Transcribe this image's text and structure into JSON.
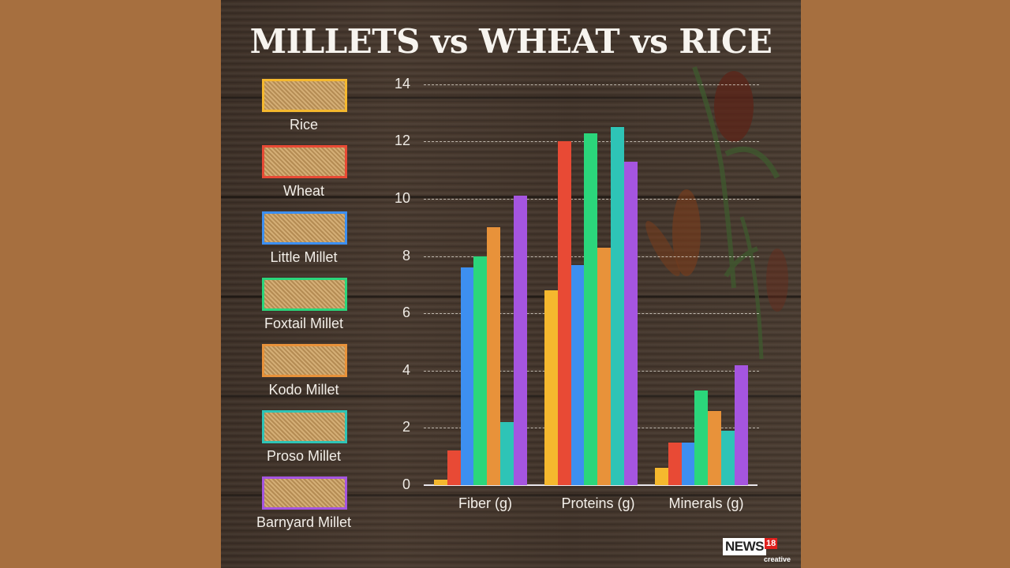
{
  "title": "MILLETS vs WHEAT vs RICE",
  "legend": [
    {
      "label": "Rice",
      "color": "#f5b82e"
    },
    {
      "label": "Wheat",
      "color": "#e84a35"
    },
    {
      "label": "Little Millet",
      "color": "#3d8ff0"
    },
    {
      "label": "Foxtail Millet",
      "color": "#2bd67b"
    },
    {
      "label": "Kodo Millet",
      "color": "#e8923a"
    },
    {
      "label": "Proso Millet",
      "color": "#2ec4b6"
    },
    {
      "label": "Barnyard Millet",
      "color": "#a555e0"
    }
  ],
  "logo": {
    "brand": "NEWS",
    "number": "18",
    "sub": "creative"
  },
  "chart_data": {
    "type": "bar",
    "title": "MILLETS vs WHEAT vs RICE",
    "categories": [
      "Fiber (g)",
      "Proteins (g)",
      "Minerals (g)"
    ],
    "series": [
      {
        "name": "Rice",
        "color": "#f5b82e",
        "values": [
          0.2,
          6.8,
          0.6
        ]
      },
      {
        "name": "Wheat",
        "color": "#e84a35",
        "values": [
          1.2,
          12.0,
          1.5
        ]
      },
      {
        "name": "Little Millet",
        "color": "#3d8ff0",
        "values": [
          7.6,
          7.7,
          1.5
        ]
      },
      {
        "name": "Foxtail Millet",
        "color": "#2bd67b",
        "values": [
          8.0,
          12.3,
          3.3
        ]
      },
      {
        "name": "Kodo Millet",
        "color": "#e8923a",
        "values": [
          9.0,
          8.3,
          2.6
        ]
      },
      {
        "name": "Proso Millet",
        "color": "#2ec4b6",
        "values": [
          2.2,
          12.5,
          1.9
        ]
      },
      {
        "name": "Barnyard Millet",
        "color": "#a555e0",
        "values": [
          10.1,
          11.3,
          4.2
        ]
      }
    ],
    "yticks": [
      0,
      2,
      4,
      6,
      8,
      10,
      12,
      14
    ],
    "ylim": [
      0,
      14
    ],
    "xlabel": "",
    "ylabel": "",
    "grid": true,
    "legend_position": "left"
  }
}
